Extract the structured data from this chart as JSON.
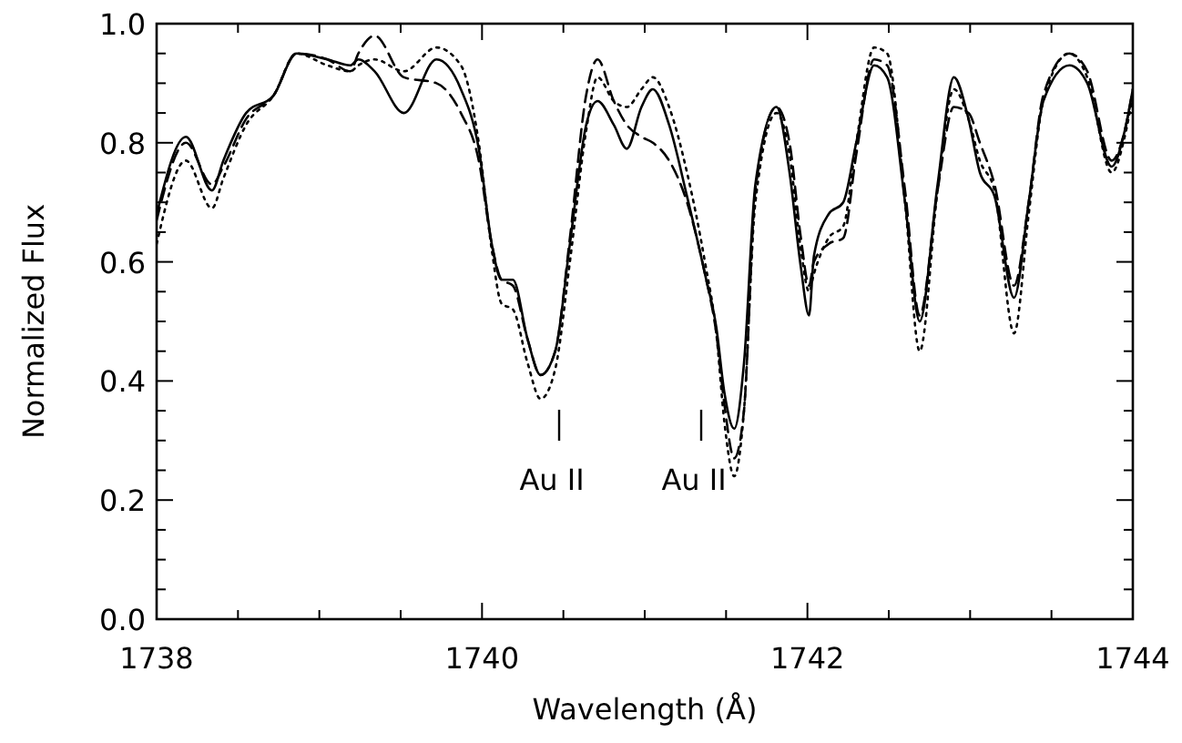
{
  "chart_data": {
    "type": "line",
    "xlabel": "Wavelength (Å)",
    "ylabel": "Normalized Flux",
    "xlim": [
      1738,
      1744
    ],
    "ylim": [
      0,
      1.0
    ],
    "xticks": [
      1738,
      {
        "value": 1738.5,
        "label": null
      },
      {
        "value": 1739,
        "label": null
      },
      {
        "value": 1739.5,
        "label": null
      },
      1740,
      {
        "value": 1740.5,
        "label": null
      },
      {
        "value": 1741,
        "label": null
      },
      {
        "value": 1741.5,
        "label": null
      },
      1742,
      {
        "value": 1742.5,
        "label": null
      },
      {
        "value": 1743,
        "label": null
      },
      {
        "value": 1743.5,
        "label": null
      },
      1744
    ],
    "yticks": [
      {
        "value": 0,
        "label": "0.0"
      },
      {
        "value": 0.05,
        "label": null
      },
      {
        "value": 0.1,
        "label": null
      },
      {
        "value": 0.15,
        "label": null
      },
      {
        "value": 0.2,
        "label": "0.2"
      },
      {
        "value": 0.25,
        "label": null
      },
      {
        "value": 0.3,
        "label": null
      },
      {
        "value": 0.35,
        "label": null
      },
      {
        "value": 0.4,
        "label": "0.4"
      },
      {
        "value": 0.45,
        "label": null
      },
      {
        "value": 0.5,
        "label": null
      },
      {
        "value": 0.55,
        "label": null
      },
      {
        "value": 0.6,
        "label": "0.6"
      },
      {
        "value": 0.65,
        "label": null
      },
      {
        "value": 0.7,
        "label": null
      },
      {
        "value": 0.75,
        "label": null
      },
      {
        "value": 0.8,
        "label": "0.8"
      },
      {
        "value": 0.85,
        "label": null
      },
      {
        "value": 0.9,
        "label": null
      },
      {
        "value": 0.95,
        "label": null
      },
      {
        "value": 1.0,
        "label": "1.0"
      }
    ],
    "x": [
      1738.0,
      1738.18,
      1738.34,
      1738.41,
      1738.55,
      1738.72,
      1738.86,
      1739.05,
      1739.19,
      1739.24,
      1739.34,
      1739.52,
      1739.72,
      1739.87,
      1739.98,
      1740.06,
      1740.12,
      1740.19,
      1740.28,
      1740.36,
      1740.45,
      1740.54,
      1740.64,
      1740.71,
      1740.81,
      1740.89,
      1740.98,
      1741.05,
      1741.15,
      1741.26,
      1741.37,
      1741.44,
      1741.49,
      1741.55,
      1741.61,
      1741.68,
      1741.81,
      1741.89,
      1741.96,
      1742.01,
      1742.04,
      1742.13,
      1742.22,
      1742.3,
      1742.41,
      1742.49,
      1742.6,
      1742.69,
      1742.8,
      1742.9,
      1742.99,
      1743.06,
      1743.15,
      1743.27,
      1743.36,
      1743.45,
      1743.61,
      1743.72,
      1743.87,
      1743.95,
      1744.0
    ],
    "series": [
      {
        "color": "#000000",
        "line_style": "solid",
        "values": [
          0.68,
          0.81,
          0.72,
          0.77,
          0.85,
          0.88,
          0.95,
          0.94,
          0.93,
          0.94,
          0.92,
          0.85,
          0.94,
          0.89,
          0.79,
          0.63,
          0.57,
          0.57,
          0.47,
          0.41,
          0.45,
          0.63,
          0.83,
          0.87,
          0.83,
          0.79,
          0.86,
          0.89,
          0.83,
          0.71,
          0.58,
          0.49,
          0.38,
          0.32,
          0.43,
          0.73,
          0.86,
          0.75,
          0.59,
          0.51,
          0.61,
          0.68,
          0.7,
          0.8,
          0.93,
          0.91,
          0.7,
          0.5,
          0.73,
          0.91,
          0.84,
          0.75,
          0.71,
          0.54,
          0.7,
          0.87,
          0.93,
          0.9,
          0.76,
          0.82,
          0.89
        ]
      },
      {
        "color": "#000000",
        "line_style": "dashed",
        "values": [
          0.67,
          0.8,
          0.73,
          0.76,
          0.84,
          0.88,
          0.95,
          0.94,
          0.92,
          0.95,
          0.98,
          0.91,
          0.9,
          0.85,
          0.77,
          0.63,
          0.57,
          0.56,
          0.47,
          0.41,
          0.45,
          0.64,
          0.88,
          0.94,
          0.87,
          0.83,
          0.81,
          0.8,
          0.77,
          0.7,
          0.58,
          0.48,
          0.36,
          0.27,
          0.35,
          0.72,
          0.86,
          0.8,
          0.64,
          0.56,
          0.6,
          0.63,
          0.64,
          0.78,
          0.94,
          0.93,
          0.72,
          0.51,
          0.72,
          0.86,
          0.85,
          0.8,
          0.73,
          0.56,
          0.7,
          0.88,
          0.95,
          0.92,
          0.77,
          0.82,
          0.89
        ]
      },
      {
        "color": "#000000",
        "line_style": "dotted",
        "values": [
          0.63,
          0.77,
          0.69,
          0.74,
          0.83,
          0.88,
          0.95,
          0.93,
          0.92,
          0.93,
          0.94,
          0.92,
          0.96,
          0.93,
          0.8,
          0.62,
          0.53,
          0.52,
          0.43,
          0.37,
          0.42,
          0.6,
          0.82,
          0.91,
          0.87,
          0.86,
          0.89,
          0.91,
          0.86,
          0.75,
          0.6,
          0.48,
          0.33,
          0.24,
          0.35,
          0.7,
          0.85,
          0.78,
          0.62,
          0.55,
          0.58,
          0.64,
          0.66,
          0.8,
          0.96,
          0.95,
          0.7,
          0.45,
          0.72,
          0.89,
          0.84,
          0.77,
          0.72,
          0.48,
          0.68,
          0.87,
          0.95,
          0.91,
          0.75,
          0.81,
          0.88
        ]
      }
    ],
    "annotations": [
      "Au II",
      "Au II"
    ]
  }
}
